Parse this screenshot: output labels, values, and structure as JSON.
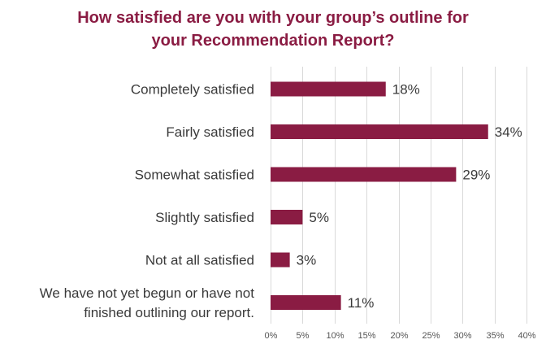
{
  "chart_data": {
    "type": "bar",
    "orientation": "horizontal",
    "title_lines": [
      "How satisfied are you with your group’s outline for",
      "your Recommendation Report?"
    ],
    "categories": [
      [
        "Completely satisfied"
      ],
      [
        "Fairly satisfied"
      ],
      [
        "Somewhat satisfied"
      ],
      [
        "Slightly satisfied"
      ],
      [
        "Not at all satisfied"
      ],
      [
        "We have not yet begun or have not",
        "finished outlining our report."
      ]
    ],
    "values": [
      18,
      34,
      29,
      5,
      3,
      11
    ],
    "value_labels": [
      "18%",
      "34%",
      "29%",
      "5%",
      "3%",
      "11%"
    ],
    "xlim": [
      0,
      40
    ],
    "x_ticks": [
      0,
      5,
      10,
      15,
      20,
      25,
      30,
      35,
      40
    ],
    "x_tick_labels": [
      "0%",
      "5%",
      "10%",
      "15%",
      "20%",
      "25%",
      "30%",
      "35%",
      "40%"
    ],
    "bar_color": "#8a1c43",
    "grid": true,
    "legend": "none"
  }
}
